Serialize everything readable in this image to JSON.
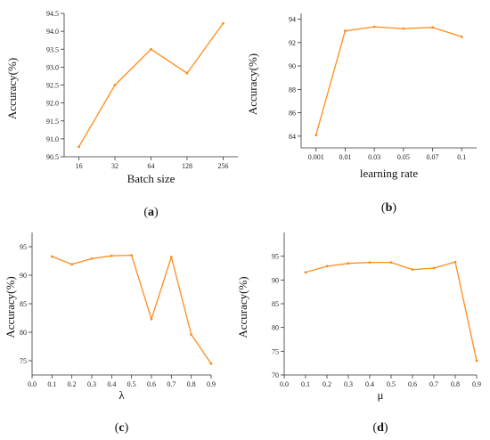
{
  "colors": {
    "series": "#FF8C1A",
    "axis": "#333333"
  },
  "chart_data": [
    {
      "type": "line",
      "panel": "a",
      "caption_open": "(",
      "caption_letter": "a",
      "caption_close": ")",
      "xlabel": "Batch size",
      "ylabel": "Accuracy(%)",
      "x_categorical": true,
      "x": [
        "16",
        "32",
        "64",
        "128",
        "256"
      ],
      "y": [
        90.78,
        92.5,
        93.5,
        92.83,
        94.22
      ],
      "ylim": [
        90.5,
        94.5
      ],
      "yticks": [
        "90.5",
        "91.0",
        "91.5",
        "92.0",
        "92.5",
        "93.0",
        "93.5",
        "94.0",
        "94.5"
      ],
      "grid": false
    },
    {
      "type": "line",
      "panel": "b",
      "caption_open": "(",
      "caption_letter": "b",
      "caption_close": ")",
      "xlabel": "learning rate",
      "ylabel": "Accuracy(%)",
      "x_categorical": true,
      "x": [
        "0.001",
        "0.01",
        "0.03",
        "0.05",
        "0.07",
        "0.1"
      ],
      "y": [
        84.1,
        93.0,
        93.35,
        93.2,
        93.3,
        92.5
      ],
      "ylim": [
        83,
        94.5
      ],
      "yticks": [
        "84",
        "86",
        "88",
        "90",
        "92",
        "94"
      ],
      "grid": false
    },
    {
      "type": "line",
      "panel": "c",
      "caption_open": "(",
      "caption_letter": "c",
      "caption_close": ")",
      "xlabel": "λ",
      "ylabel": "Accuracy(%)",
      "x_categorical": false,
      "xlim": [
        0.0,
        0.9
      ],
      "xticks": [
        "0.0",
        "0.1",
        "0.2",
        "0.3",
        "0.4",
        "0.5",
        "0.6",
        "0.7",
        "0.8",
        "0.9"
      ],
      "x": [
        0.1,
        0.2,
        0.3,
        0.4,
        0.5,
        0.6,
        0.7,
        0.8,
        0.9
      ],
      "y": [
        93.3,
        91.9,
        92.9,
        93.4,
        93.5,
        82.3,
        93.2,
        79.6,
        74.5
      ],
      "ylim": [
        72.5,
        97.5
      ],
      "yticks": [
        "75",
        "80",
        "85",
        "90",
        "95"
      ],
      "grid": false
    },
    {
      "type": "line",
      "panel": "d",
      "caption_open": "(",
      "caption_letter": "d",
      "caption_close": ")",
      "xlabel": "μ",
      "ylabel": "Accuracy(%)",
      "x_categorical": false,
      "xlim": [
        0.0,
        0.9
      ],
      "xticks": [
        "0.0",
        "0.1",
        "0.2",
        "0.3",
        "0.4",
        "0.5",
        "0.6",
        "0.7",
        "0.8",
        "0.9"
      ],
      "x": [
        0.1,
        0.2,
        0.3,
        0.4,
        0.5,
        0.6,
        0.7,
        0.8,
        0.9
      ],
      "y": [
        91.6,
        92.9,
        93.5,
        93.7,
        93.7,
        92.2,
        92.5,
        93.8,
        73.0
      ],
      "ylim": [
        70,
        100
      ],
      "yticks": [
        "70",
        "75",
        "80",
        "85",
        "90",
        "95"
      ],
      "grid": false
    }
  ]
}
